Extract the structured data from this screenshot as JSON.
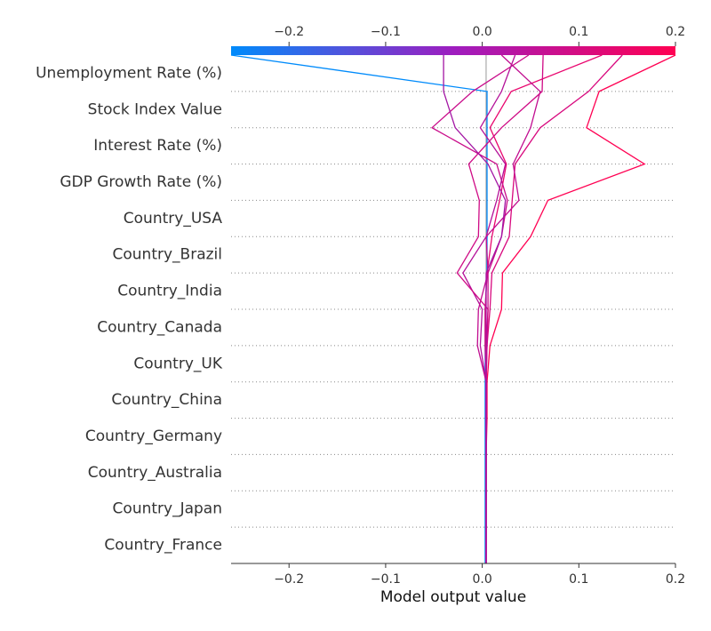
{
  "chart_data": {
    "type": "line",
    "subtype": "shap-decision-plot",
    "title": "",
    "xlabel": "Model output value",
    "ylabel": "",
    "xlim": [
      -0.26,
      0.2
    ],
    "base_value": 0.004,
    "xticks": [
      -0.2,
      -0.1,
      0.0,
      0.1,
      0.2
    ],
    "xtick_labels": [
      "−0.2",
      "−0.1",
      "0.0",
      "0.1",
      "0.2"
    ],
    "colorbar": {
      "ticks": [
        -0.2,
        -0.1,
        0.0,
        0.1,
        0.2
      ],
      "tick_labels": [
        "−0.2",
        "−0.1",
        "0.0",
        "0.1",
        "0.2"
      ],
      "colors": [
        "#008bfb",
        "#ff0052"
      ]
    },
    "features": [
      "Unemployment Rate (%)",
      "Stock Index Value",
      "Interest Rate (%)",
      "GDP Growth Rate (%)",
      "Country_USA",
      "Country_Brazil",
      "Country_India",
      "Country_Canada",
      "Country_UK",
      "Country_China",
      "Country_Germany",
      "Country_Australia",
      "Country_Japan",
      "Country_France"
    ],
    "series": [
      {
        "values": [
          0.003,
          0.003,
          0.003,
          0.003,
          0.003,
          0.003,
          0.003,
          0.003,
          0.005,
          0.005,
          0.005,
          0.005,
          0.005,
          0.005,
          -0.26
        ],
        "color": "#008bfb"
      },
      {
        "values": [
          0.004,
          0.004,
          0.004,
          0.004,
          0.005,
          0.005,
          0.008,
          0.02,
          0.021,
          0.05,
          0.068,
          0.168,
          0.108,
          0.121,
          0.2
        ],
        "color": "#ff0052"
      },
      {
        "values": [
          0.004,
          0.004,
          0.004,
          0.004,
          0.004,
          0.004,
          0.003,
          0.003,
          0.005,
          0.01,
          0.018,
          0.025,
          0.008,
          0.03,
          0.124
        ],
        "color": "#e9066f"
      },
      {
        "values": [
          0.004,
          0.004,
          0.004,
          0.004,
          0.004,
          0.004,
          0.005,
          0.008,
          0.01,
          0.028,
          0.031,
          0.034,
          0.06,
          0.11,
          0.145
        ],
        "color": "#d8087e"
      },
      {
        "values": [
          0.004,
          0.004,
          0.004,
          0.004,
          0.004,
          0.004,
          0.005,
          0.006,
          0.006,
          0.02,
          0.026,
          0.015,
          -0.052,
          -0.01,
          0.048
        ],
        "color": "#c90c8a"
      },
      {
        "values": [
          0.004,
          0.004,
          0.004,
          0.004,
          0.004,
          0.004,
          -0.002,
          0.0,
          -0.02,
          0.004,
          0.015,
          0.024,
          -0.002,
          0.02,
          0.034
        ],
        "color": "#b41199"
      },
      {
        "values": [
          0.004,
          0.004,
          0.004,
          0.004,
          0.004,
          0.004,
          -0.005,
          -0.004,
          0.006,
          0.004,
          0.038,
          0.032,
          0.05,
          0.06,
          0.02
        ],
        "color": "#c10d90"
      },
      {
        "values": [
          0.004,
          0.004,
          0.004,
          0.004,
          0.004,
          0.004,
          0.004,
          0.006,
          -0.026,
          -0.004,
          -0.003,
          -0.014,
          0.02,
          0.062,
          0.063
        ],
        "color": "#cf0a85"
      },
      {
        "values": [
          0.004,
          0.004,
          0.004,
          0.004,
          0.004,
          0.004,
          0.004,
          0.004,
          0.004,
          0.02,
          0.024,
          0.006,
          -0.028,
          -0.04,
          -0.04
        ],
        "color": "#a316a4"
      }
    ]
  }
}
